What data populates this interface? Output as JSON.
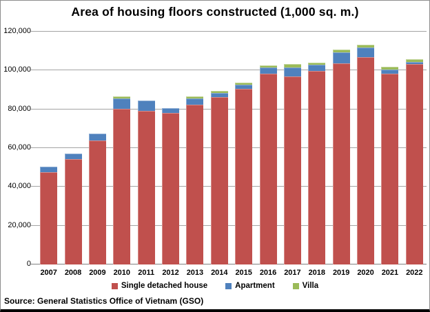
{
  "chart_data": {
    "type": "bar",
    "stacked": true,
    "title": "Area of housing floors constructed (1,000 sq. m.)",
    "categories": [
      "2007",
      "2008",
      "2009",
      "2010",
      "2011",
      "2012",
      "2013",
      "2014",
      "2015",
      "2016",
      "2017",
      "2018",
      "2019",
      "2020",
      "2021",
      "2022"
    ],
    "series": [
      {
        "name": "Single detached house",
        "color": "#C0504D",
        "values": [
          47600,
          54300,
          63900,
          80100,
          79300,
          78200,
          82200,
          86300,
          90500,
          98500,
          97100,
          99900,
          103500,
          106700,
          98400,
          103400
        ]
      },
      {
        "name": "Apartment",
        "color": "#4F81BD",
        "values": [
          2900,
          2800,
          3500,
          5300,
          5300,
          2500,
          3300,
          2200,
          2100,
          3000,
          4500,
          3000,
          5900,
          5200,
          2100,
          1100
        ]
      },
      {
        "name": "Villa",
        "color": "#9BBB59",
        "values": [
          0,
          0,
          0,
          1100,
          0,
          0,
          1100,
          1100,
          1100,
          1100,
          1700,
          1200,
          1500,
          1200,
          1300,
          1400
        ]
      }
    ],
    "ylabel": "",
    "xlabel": "",
    "ylim": [
      0,
      120000
    ],
    "ytick_interval": 20000,
    "yticks": [
      0,
      20000,
      40000,
      60000,
      80000,
      100000,
      120000
    ],
    "ytick_labels": [
      "0",
      "20,000",
      "40,000",
      "60,000",
      "80,000",
      "100,000",
      "120,000"
    ],
    "grid": true,
    "legend_position": "bottom",
    "source": "Source: General Statistics Office of Vietnam (GSO)"
  }
}
